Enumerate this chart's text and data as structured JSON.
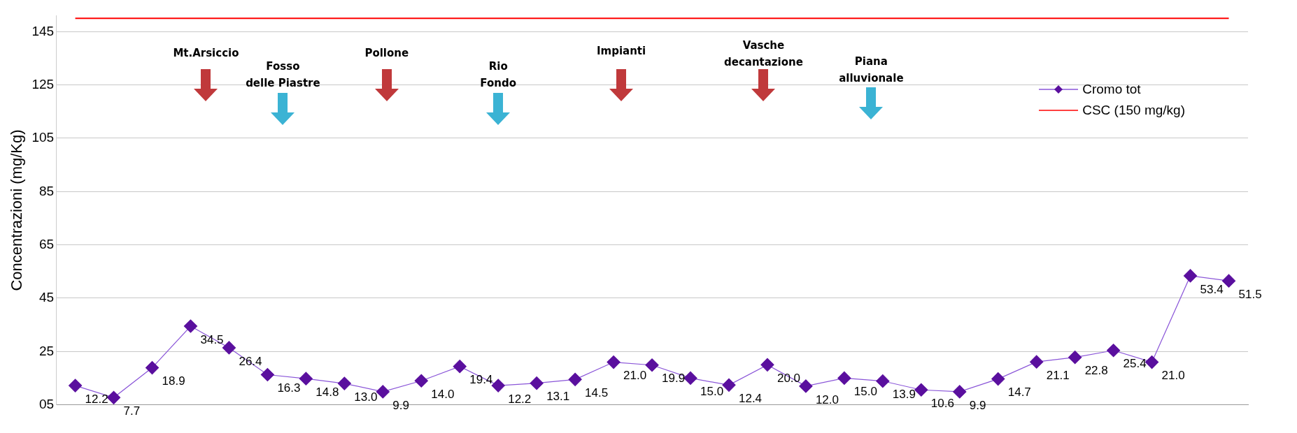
{
  "chart_data": {
    "type": "line",
    "ylabel": "Concentrazioni (mg/Kg)",
    "categories": [
      null,
      null,
      null,
      null,
      null,
      null,
      null,
      null,
      null,
      null,
      null,
      null,
      null,
      null,
      null,
      null,
      null,
      null,
      null,
      null,
      null,
      null,
      null,
      null,
      null,
      null,
      null,
      null,
      null,
      null,
      null
    ],
    "series": [
      {
        "name": "Cromo tot",
        "color": "#5a0f9e",
        "marker": "diamond",
        "values": [
          12.2,
          7.7,
          18.9,
          34.5,
          26.4,
          16.3,
          14.8,
          13.0,
          9.9,
          14.0,
          19.4,
          12.2,
          13.1,
          14.5,
          21.0,
          19.9,
          15.0,
          12.4,
          20.0,
          12.0,
          15.0,
          13.9,
          10.6,
          9.9,
          14.7,
          21.1,
          22.8,
          25.4,
          21.0,
          53.4,
          51.5
        ],
        "value_labels": [
          "12.2",
          "7.7",
          "18.9",
          "34.5",
          "26.4",
          "16.3",
          "14.8",
          "13.0",
          "9.9",
          "14.0",
          "19.4",
          "12.2",
          "13.1",
          "14.5",
          "21.0",
          "19.9",
          "15.0",
          "12.4",
          "20.0",
          "12.0",
          "15.0",
          "13.9",
          "10.6",
          "9.9",
          "14.7",
          "21.1",
          "22.8",
          "25.4",
          "21.0",
          "53.4",
          "51.5"
        ]
      }
    ],
    "ref_lines": [
      {
        "axis": "y",
        "value": 150,
        "label": "CSC (150 mg/kg)",
        "color": "#ff0000"
      }
    ],
    "ylim": [
      5,
      151
    ],
    "yticks": [
      {
        "value": 5,
        "label": "05"
      },
      25,
      45,
      65,
      85,
      105,
      125,
      145
    ],
    "grid": "y",
    "legend": "right",
    "annotations": [
      "Mt.Arsiccio",
      "Fosso\ndelle Piastre",
      "Pollone",
      "Rio\nFondo",
      "Impianti",
      "Vasche\ndecantazione",
      "Piana\nalluvionale"
    ]
  }
}
